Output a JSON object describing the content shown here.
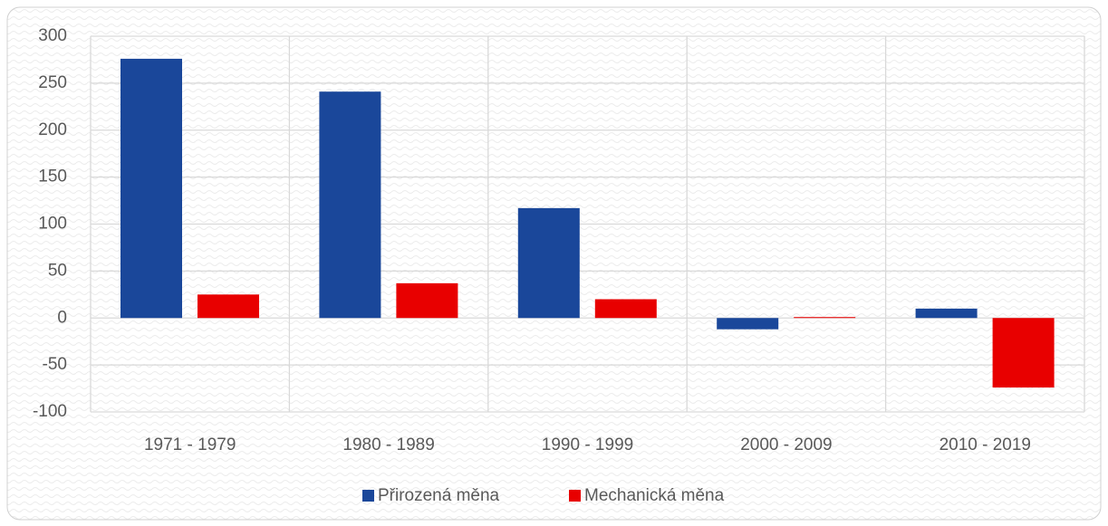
{
  "chart_data": {
    "type": "bar",
    "categories": [
      "1971 - 1979",
      "1980 - 1989",
      "1990 - 1999",
      "2000 - 2009",
      "2010 - 2019"
    ],
    "series": [
      {
        "name": "Přirozená měna",
        "color": "#1a479a",
        "values": [
          276,
          241,
          117,
          -12,
          10
        ]
      },
      {
        "name": "Mechanická měna",
        "color": "#e80000",
        "values": [
          25,
          37,
          20,
          1,
          -74
        ]
      }
    ],
    "ylim": [
      -100,
      300
    ],
    "yticks": [
      -100,
      -50,
      0,
      50,
      100,
      150,
      200,
      250,
      300
    ],
    "grid": true,
    "legend": "bottom"
  }
}
